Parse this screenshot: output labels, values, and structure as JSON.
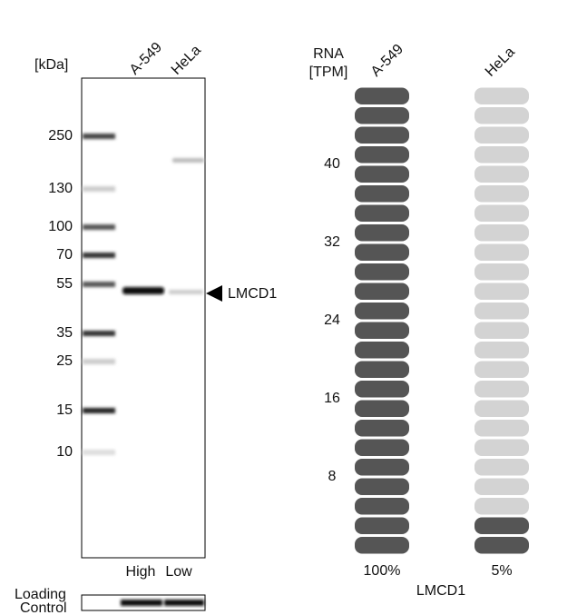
{
  "blot": {
    "unit": "[kDa]",
    "lanes": [
      "A-549",
      "HeLa"
    ],
    "markers": [
      250,
      130,
      100,
      70,
      55,
      35,
      25,
      15,
      10
    ],
    "levels": [
      "High",
      "Low"
    ],
    "target": "LMCD1",
    "loading_control": [
      "Loading",
      "Control"
    ]
  },
  "rna": {
    "title": [
      "RNA",
      "[TPM]"
    ],
    "samples": [
      "A-549",
      "HeLa"
    ],
    "values": [
      100,
      5
    ],
    "value_labels": [
      "100%",
      "5%"
    ],
    "ylim": [
      0,
      48
    ],
    "yticks": [
      8,
      16,
      24,
      32,
      40
    ],
    "gene": "LMCD1"
  }
}
